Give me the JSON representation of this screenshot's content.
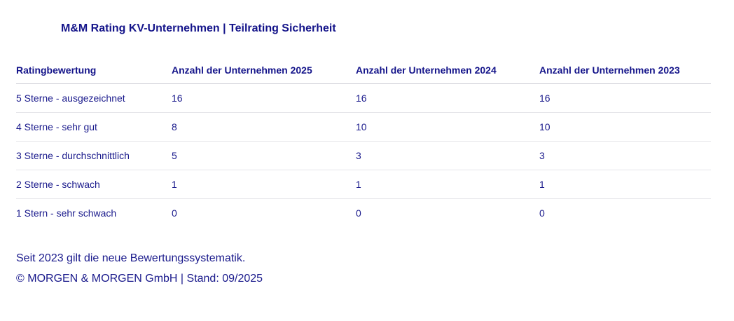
{
  "title": "M&M Rating KV-Unternehmen | Teilrating Sicherheit",
  "table": {
    "headers": [
      "Ratingbewertung",
      "Anzahl der Unternehmen 2025",
      "Anzahl der Unternehmen 2024",
      "Anzahl der Unternehmen 2023"
    ],
    "rows": [
      [
        "5 Sterne - ausgezeichnet",
        "16",
        "16",
        "16"
      ],
      [
        "4 Sterne - sehr gut",
        "8",
        "10",
        "10"
      ],
      [
        "3 Sterne - durchschnittlich",
        "5",
        "3",
        "3"
      ],
      [
        "2 Sterne - schwach",
        "1",
        "1",
        "1"
      ],
      [
        "1 Stern - sehr schwach",
        "0",
        "0",
        "0"
      ]
    ]
  },
  "footnote": "Seit 2023 gilt die neue Bewertungssystematik.",
  "copyright": "© MORGEN & MORGEN GmbH | Stand: 09/2025",
  "colors": {
    "text": "#1a1a8c",
    "divider": "#e6e6ea"
  }
}
